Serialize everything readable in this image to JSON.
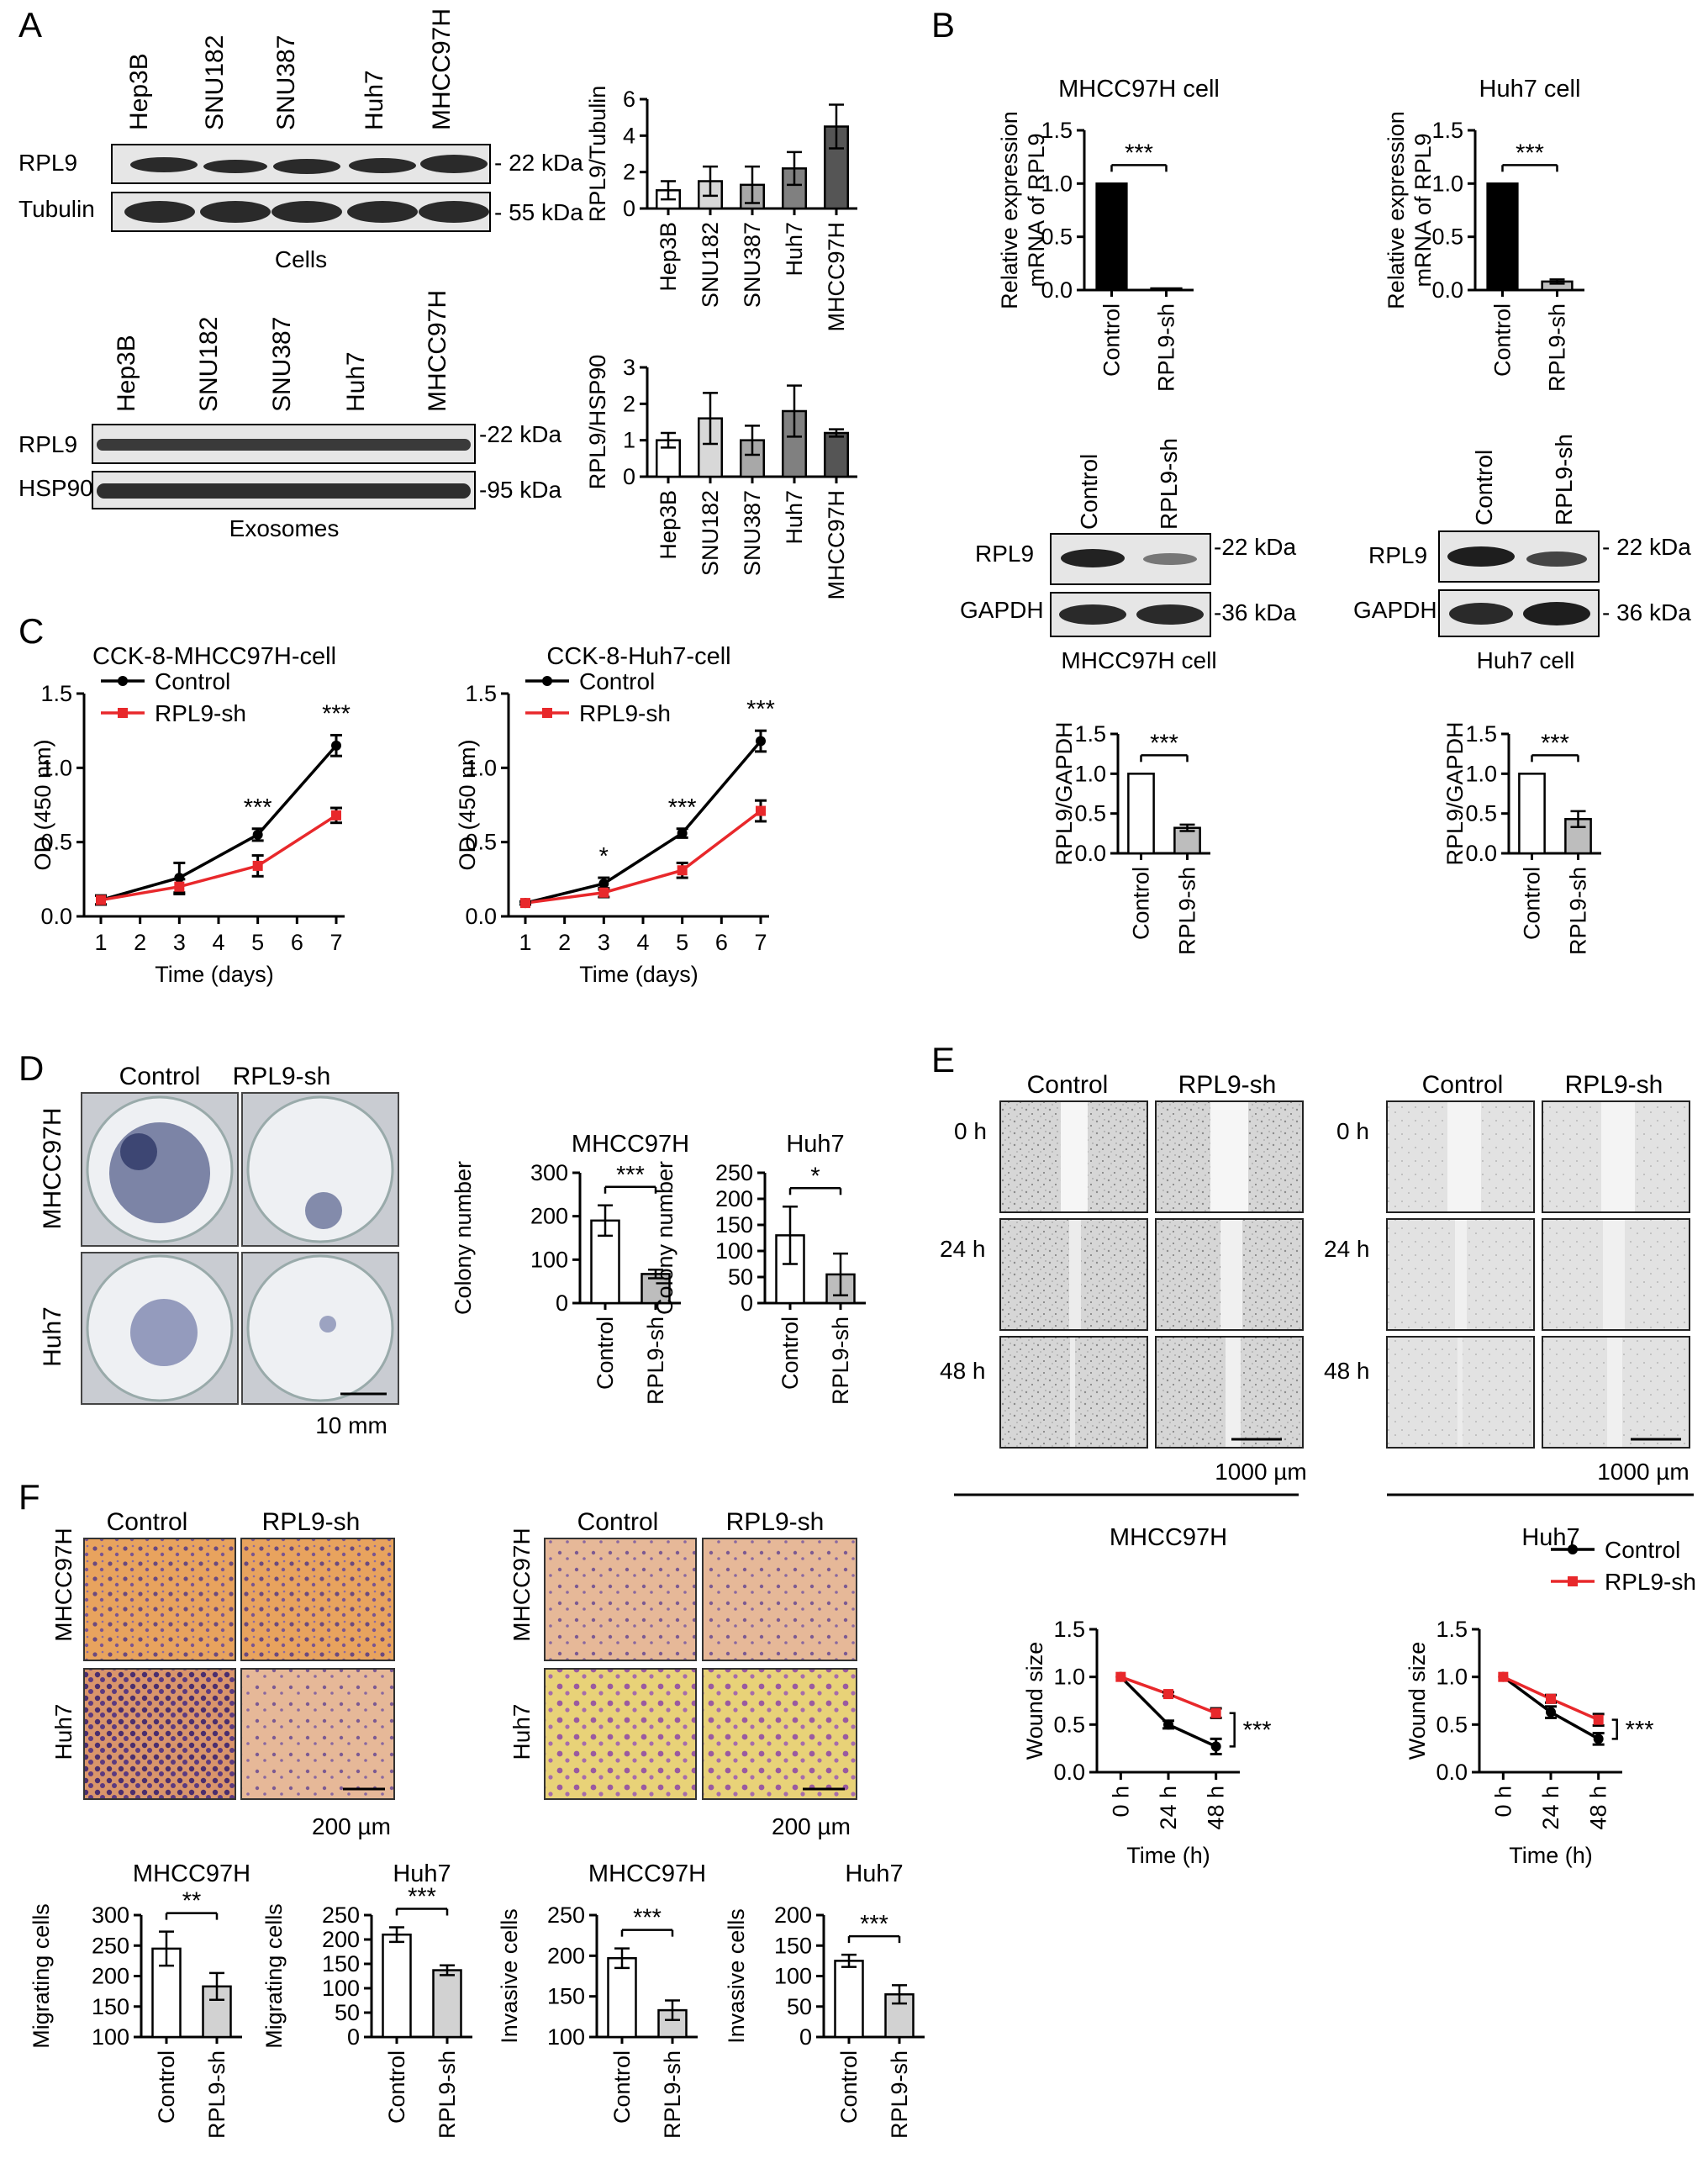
{
  "panels": {
    "A": {
      "letter": "A",
      "cells_caption": "Cells",
      "exo_caption": "Exosomes",
      "lanes": [
        "Hep3B",
        "SNU182",
        "SNU387",
        "Huh7",
        "MHCC97H"
      ],
      "cells_rows": [
        {
          "label": "RPL9",
          "kda": "22 kDa"
        },
        {
          "label": "Tubulin",
          "kda": "55 kDa"
        }
      ],
      "exo_rows": [
        {
          "label": "RPL9",
          "kda": "22 kDa"
        },
        {
          "label": "HSP90",
          "kda": "95 kDa"
        }
      ]
    },
    "B": {
      "letter": "B",
      "blots": [
        {
          "caption": "MHCC97H cell",
          "lanes": [
            "Control",
            "RPL9-sh"
          ],
          "rows": [
            {
              "label": "RPL9",
              "kda": "22 kDa"
            },
            {
              "label": "GAPDH",
              "kda": "36 kDa"
            }
          ]
        },
        {
          "caption": "Huh7 cell",
          "lanes": [
            "Control",
            "RPL9-sh"
          ],
          "rows": [
            {
              "label": "RPL9",
              "kda": "22 kDa"
            },
            {
              "label": "GAPDH",
              "kda": "36 kDa"
            }
          ]
        }
      ]
    },
    "C": {
      "letter": "C"
    },
    "D": {
      "letter": "D",
      "cols": [
        "Control",
        "RPL9-sh"
      ],
      "rows": [
        "MHCC97H",
        "Huh7"
      ],
      "scale": "10 mm"
    },
    "E": {
      "letter": "E",
      "groups": [
        {
          "cols": [
            "Control",
            "RPL9-sh"
          ],
          "rows": [
            "0 h",
            "24 h",
            "48 h"
          ],
          "scale": "1000 µm"
        },
        {
          "cols": [
            "Control",
            "RPL9-sh"
          ],
          "rows": [
            "0 h",
            "24 h",
            "48 h"
          ],
          "scale": "1000 µm"
        }
      ]
    },
    "F": {
      "letter": "F",
      "groups": [
        {
          "cols": [
            "Control",
            "RPL9-sh"
          ],
          "rows": [
            "MHCC97H",
            "Huh7"
          ],
          "scale": "200 µm"
        },
        {
          "cols": [
            "Control",
            "RPL9-sh"
          ],
          "rows": [
            "MHCC97H",
            "Huh7"
          ],
          "scale": "200 µm"
        }
      ]
    }
  },
  "colors": {
    "control_line": "#000000",
    "sh_line": "#e8282b",
    "bar_dark": "#555555",
    "bar_grey": "#c8c8c8",
    "well_bg": "#e4e7ec",
    "wound_bg": "#d9d9d9",
    "transwell_bg": "#e9a660",
    "transwell_bg2": "#e0c060"
  },
  "chart_data": [
    {
      "id": "a_cells",
      "type": "bar",
      "ylabel": "RPL9/Tubulin",
      "categories": [
        "Hep3B",
        "SNU182",
        "SNU387",
        "Huh7",
        "MHCC97H"
      ],
      "values": [
        1.0,
        1.5,
        1.3,
        2.2,
        4.5
      ],
      "errors": [
        0.5,
        0.8,
        1.0,
        0.9,
        1.2
      ],
      "ylim": [
        0,
        6
      ],
      "yticks": [
        "0",
        "2",
        "4",
        "6"
      ]
    },
    {
      "id": "a_exo",
      "type": "bar",
      "ylabel": "RPL9/HSP90",
      "categories": [
        "Hep3B",
        "SNU182",
        "SNU387",
        "Huh7",
        "MHCC97H"
      ],
      "values": [
        1.0,
        1.6,
        1.0,
        1.8,
        1.2
      ],
      "errors": [
        0.2,
        0.7,
        0.4,
        0.7,
        0.1
      ],
      "ylim": [
        0,
        3
      ],
      "yticks": [
        "0",
        "1",
        "2",
        "3"
      ]
    },
    {
      "id": "b_mrna_m",
      "type": "bar",
      "title": "MHCC97H cell",
      "ylabel": "Relative expression mRNA of RPL9",
      "categories": [
        "Control",
        "RPL9-sh"
      ],
      "values": [
        1.0,
        0.01
      ],
      "errors": [
        0,
        0
      ],
      "ylim": [
        0,
        1.5
      ],
      "yticks": [
        "0.0",
        "0.5",
        "1.0",
        "1.5"
      ],
      "sig": "***"
    },
    {
      "id": "b_mrna_h",
      "type": "bar",
      "title": "Huh7 cell",
      "ylabel": "Relative expression mRNA of RPL9",
      "categories": [
        "Control",
        "RPL9-sh"
      ],
      "values": [
        1.0,
        0.08
      ],
      "errors": [
        0,
        0.02
      ],
      "ylim": [
        0,
        1.5
      ],
      "yticks": [
        "0.0",
        "0.5",
        "1.0",
        "1.5"
      ],
      "sig": "***"
    },
    {
      "id": "b_prot_m",
      "type": "bar",
      "ylabel": "RPL9/GAPDH",
      "categories": [
        "Control",
        "RPL9-sh"
      ],
      "values": [
        1.0,
        0.32
      ],
      "errors": [
        0,
        0.04
      ],
      "ylim": [
        0,
        1.5
      ],
      "yticks": [
        "0.0",
        "0.5",
        "1.0",
        "1.5"
      ],
      "sig": "***"
    },
    {
      "id": "b_prot_h",
      "type": "bar",
      "ylabel": "RPL9/GAPDH",
      "categories": [
        "Control",
        "RPL9-sh"
      ],
      "values": [
        1.0,
        0.43
      ],
      "errors": [
        0,
        0.1
      ],
      "ylim": [
        0,
        1.5
      ],
      "yticks": [
        "0.0",
        "0.5",
        "1.0",
        "1.5"
      ],
      "sig": "***"
    },
    {
      "id": "c_m",
      "type": "line",
      "title": "CCK-8-MHCC97H-cell",
      "xlabel": "Time (days)",
      "ylabel": "OD (450 nm)",
      "x": [
        1,
        3,
        5,
        7
      ],
      "xticks": [
        1,
        2,
        3,
        4,
        5,
        6,
        7
      ],
      "ylim": [
        0,
        1.5
      ],
      "yticks": [
        "0.0",
        "0.5",
        "1.0",
        "1.5"
      ],
      "legend": "top-left",
      "series": [
        {
          "name": "Control",
          "values": [
            0.11,
            0.26,
            0.55,
            1.15
          ],
          "errors": [
            0.03,
            0.1,
            0.04,
            0.07
          ]
        },
        {
          "name": "RPL9-sh",
          "values": [
            0.11,
            0.2,
            0.34,
            0.68
          ],
          "errors": [
            0.03,
            0.05,
            0.07,
            0.05
          ]
        }
      ],
      "sig": [
        {
          "x": 5,
          "text": "***"
        },
        {
          "x": 7,
          "text": "***"
        }
      ]
    },
    {
      "id": "c_h",
      "type": "line",
      "title": "CCK-8-Huh7-cell",
      "xlabel": "Time (days)",
      "ylabel": "OD (450 nm)",
      "x": [
        1,
        3,
        5,
        7
      ],
      "xticks": [
        1,
        2,
        3,
        4,
        5,
        6,
        7
      ],
      "ylim": [
        0,
        1.5
      ],
      "yticks": [
        "0.0",
        "0.5",
        "1.0",
        "1.5"
      ],
      "legend": "top-left",
      "series": [
        {
          "name": "Control",
          "values": [
            0.09,
            0.22,
            0.56,
            1.18
          ],
          "errors": [
            0.01,
            0.04,
            0.03,
            0.07
          ]
        },
        {
          "name": "RPL9-sh",
          "values": [
            0.09,
            0.16,
            0.31,
            0.71
          ],
          "errors": [
            0.01,
            0.03,
            0.05,
            0.07
          ]
        }
      ],
      "sig": [
        {
          "x": 3,
          "text": "*"
        },
        {
          "x": 5,
          "text": "***"
        },
        {
          "x": 7,
          "text": "***"
        }
      ]
    },
    {
      "id": "d_m",
      "type": "bar",
      "title": "MHCC97H",
      "ylabel": "Colony number",
      "categories": [
        "Control",
        "RPL9-sh"
      ],
      "values": [
        190,
        67
      ],
      "errors": [
        35,
        10
      ],
      "ylim": [
        0,
        300
      ],
      "yticks": [
        "0",
        "100",
        "200",
        "300"
      ],
      "sig": "***"
    },
    {
      "id": "d_h",
      "type": "bar",
      "title": "Huh7",
      "ylabel": "Colony number",
      "categories": [
        "Control",
        "RPL9-sh"
      ],
      "values": [
        130,
        55
      ],
      "errors": [
        55,
        40
      ],
      "ylim": [
        0,
        250
      ],
      "yticks": [
        "0",
        "50",
        "100",
        "150",
        "200",
        "250"
      ],
      "sig": "*"
    },
    {
      "id": "e_m",
      "type": "line",
      "title": "MHCC97H",
      "xlabel": "Time (h)",
      "ylabel": "Wound size",
      "x": [
        "0 h",
        "24 h",
        "48 h"
      ],
      "ylim": [
        0,
        1.5
      ],
      "yticks": [
        "0.0",
        "0.5",
        "1.0",
        "1.5"
      ],
      "series": [
        {
          "name": "Control",
          "values": [
            1.0,
            0.5,
            0.27
          ],
          "errors": [
            0,
            0.04,
            0.08
          ]
        },
        {
          "name": "RPL9-sh",
          "values": [
            1.0,
            0.82,
            0.62
          ],
          "errors": [
            0,
            0.02,
            0.05
          ]
        }
      ],
      "sig": "***"
    },
    {
      "id": "e_h",
      "type": "line",
      "title": "Huh7",
      "xlabel": "Time (h)",
      "ylabel": "Wound size",
      "x": [
        "0 h",
        "24 h",
        "48 h"
      ],
      "ylim": [
        0,
        1.5
      ],
      "yticks": [
        "0.0",
        "0.5",
        "1.0",
        "1.5"
      ],
      "legend": "top-right",
      "series": [
        {
          "name": "Control",
          "values": [
            1.0,
            0.63,
            0.35
          ],
          "errors": [
            0,
            0.06,
            0.06
          ]
        },
        {
          "name": "RPL9-sh",
          "values": [
            1.0,
            0.77,
            0.55
          ],
          "errors": [
            0,
            0.04,
            0.06
          ]
        }
      ],
      "sig": "***"
    },
    {
      "id": "f_mig_m",
      "type": "bar",
      "title": "MHCC97H",
      "ylabel": "Migrating cells",
      "categories": [
        "Control",
        "RPL9-sh"
      ],
      "values": [
        245,
        183
      ],
      "errors": [
        28,
        22
      ],
      "ylim": [
        100,
        300
      ],
      "yticks": [
        "100",
        "150",
        "200",
        "250",
        "300"
      ],
      "sig": "**"
    },
    {
      "id": "f_mig_h",
      "type": "bar",
      "title": "Huh7",
      "ylabel": "Migrating cells",
      "categories": [
        "Control",
        "RPL9-sh"
      ],
      "values": [
        210,
        137
      ],
      "errors": [
        15,
        10
      ],
      "ylim": [
        0,
        250
      ],
      "yticks": [
        "0",
        "50",
        "100",
        "150",
        "200",
        "250"
      ],
      "sig": "***"
    },
    {
      "id": "f_inv_m",
      "type": "bar",
      "title": "MHCC97H",
      "ylabel": "Invasive cells",
      "categories": [
        "Control",
        "RPL9-sh"
      ],
      "values": [
        197,
        133
      ],
      "errors": [
        12,
        12
      ],
      "ylim": [
        100,
        250
      ],
      "yticks": [
        "100",
        "150",
        "200",
        "250"
      ],
      "sig": "***"
    },
    {
      "id": "f_inv_h",
      "type": "bar",
      "title": "Huh7",
      "ylabel": "Invasive cells",
      "categories": [
        "Control",
        "RPL9-sh"
      ],
      "values": [
        125,
        70
      ],
      "errors": [
        10,
        15
      ],
      "ylim": [
        0,
        200
      ],
      "yticks": [
        "0",
        "50",
        "100",
        "150",
        "200"
      ],
      "sig": "***"
    }
  ]
}
